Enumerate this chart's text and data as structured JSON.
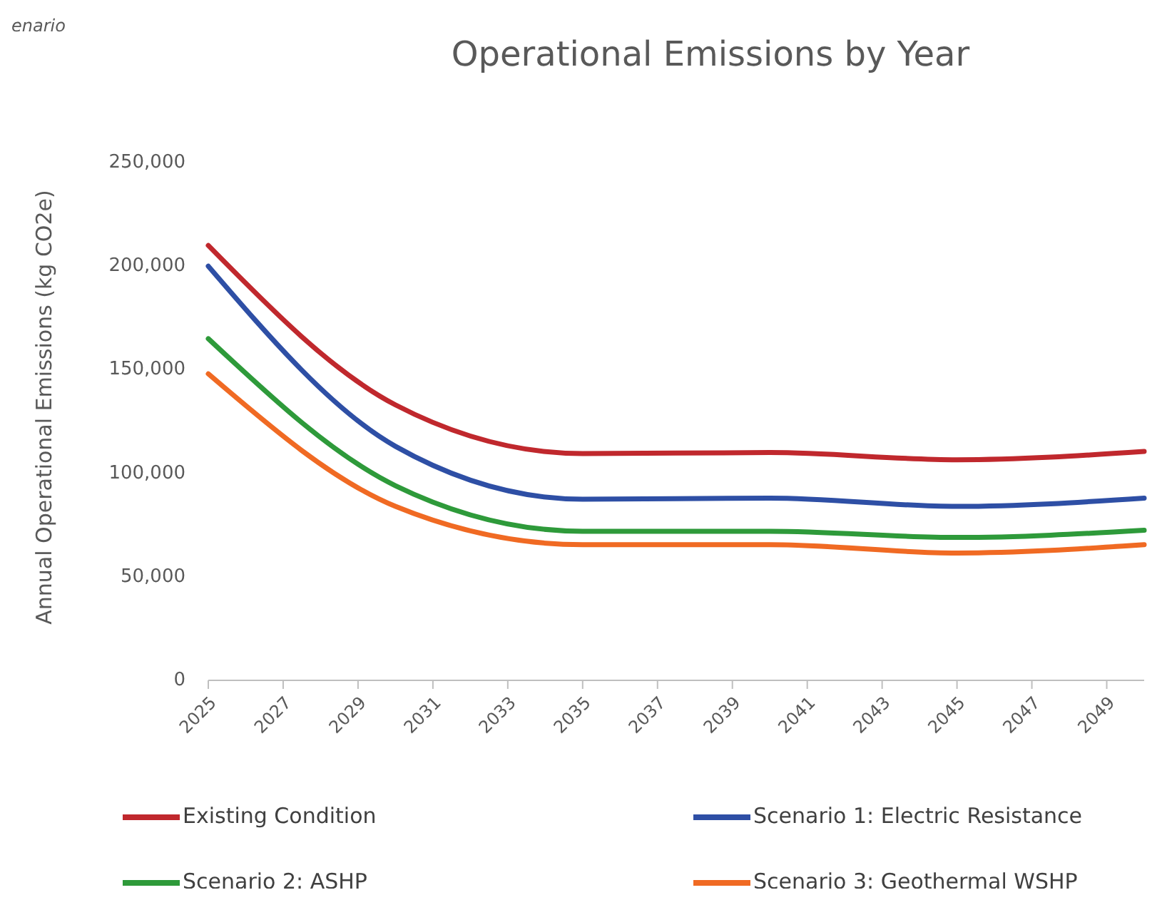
{
  "chart_data": {
    "type": "line",
    "title": "Operational Emissions by Year",
    "ylabel": "Annual Operational Emissions (kg CO2e)",
    "annotations": [
      "enario"
    ],
    "x": [
      2025,
      2030,
      2035,
      2040,
      2045,
      2050
    ],
    "series": [
      {
        "name": "Existing Condition",
        "color": "#c0282d",
        "values": [
          210000,
          133000,
          109500,
          110000,
          106500,
          110500
        ]
      },
      {
        "name": "Scenario 1: Electric Resistance",
        "color": "#2e4fa5",
        "values": [
          200000,
          113000,
          87500,
          88000,
          84000,
          88000
        ]
      },
      {
        "name": "Scenario 2: ASHP",
        "color": "#2e9a3a",
        "values": [
          165000,
          94000,
          72000,
          72000,
          69000,
          72500
        ]
      },
      {
        "name": "Scenario 3: Geothermal WSHP",
        "color": "#f06a23",
        "values": [
          148000,
          84000,
          65500,
          65500,
          61500,
          65500
        ]
      }
    ],
    "xlim": [
      2025,
      2050
    ],
    "xticks": [
      2025,
      2027,
      2029,
      2031,
      2033,
      2035,
      2037,
      2039,
      2041,
      2043,
      2045,
      2047,
      2049
    ],
    "ylim": [
      0,
      250000
    ],
    "yticks": [
      0,
      {
        "value": 50000,
        "label": "50,000"
      },
      {
        "value": 100000,
        "label": "100,000"
      },
      {
        "value": 150000,
        "label": "150,000"
      },
      {
        "value": 200000,
        "label": "200,000"
      },
      {
        "value": 250000,
        "label": "250,000"
      }
    ],
    "grid": false,
    "legend": "bottom",
    "line_style": "solid",
    "marker": "none"
  }
}
